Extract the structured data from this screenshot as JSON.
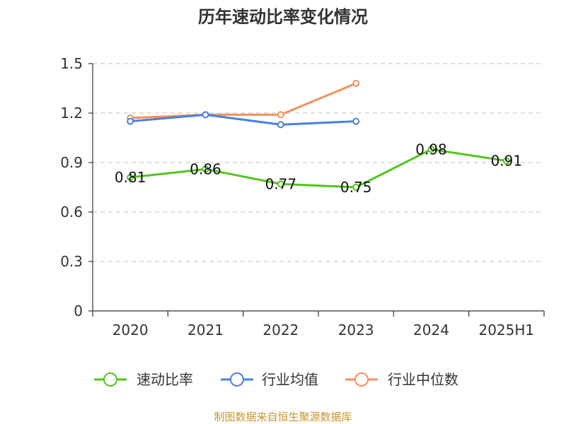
{
  "chart_data": {
    "type": "line",
    "title": "历年速动比率变化情况",
    "categories": [
      "2020",
      "2021",
      "2022",
      "2023",
      "2024",
      "2025H1"
    ],
    "ylim": [
      0,
      1.5
    ],
    "yticks": [
      0,
      0.3,
      0.6,
      0.9,
      1.2,
      1.5
    ],
    "ytick_labels": [
      "0",
      "0.3",
      "0.6",
      "0.9",
      "1.2",
      "1.5"
    ],
    "grid": true,
    "legend_position": "bottom",
    "series": [
      {
        "name": "速动比率",
        "color": "#52c41a",
        "values": [
          0.81,
          0.86,
          0.77,
          0.75,
          0.98,
          0.91
        ],
        "labels": [
          "0.81",
          "0.86",
          "0.77",
          "0.75",
          "0.98",
          "0.91"
        ]
      },
      {
        "name": "行业均值",
        "color": "#4a7fe0",
        "values": [
          1.15,
          1.19,
          1.13,
          1.15,
          null,
          null
        ]
      },
      {
        "name": "行业中位数",
        "color": "#f5905a",
        "values": [
          1.17,
          1.19,
          1.19,
          1.38,
          null,
          null
        ]
      }
    ]
  },
  "source_note": "制图数据来自恒生聚源数据库"
}
